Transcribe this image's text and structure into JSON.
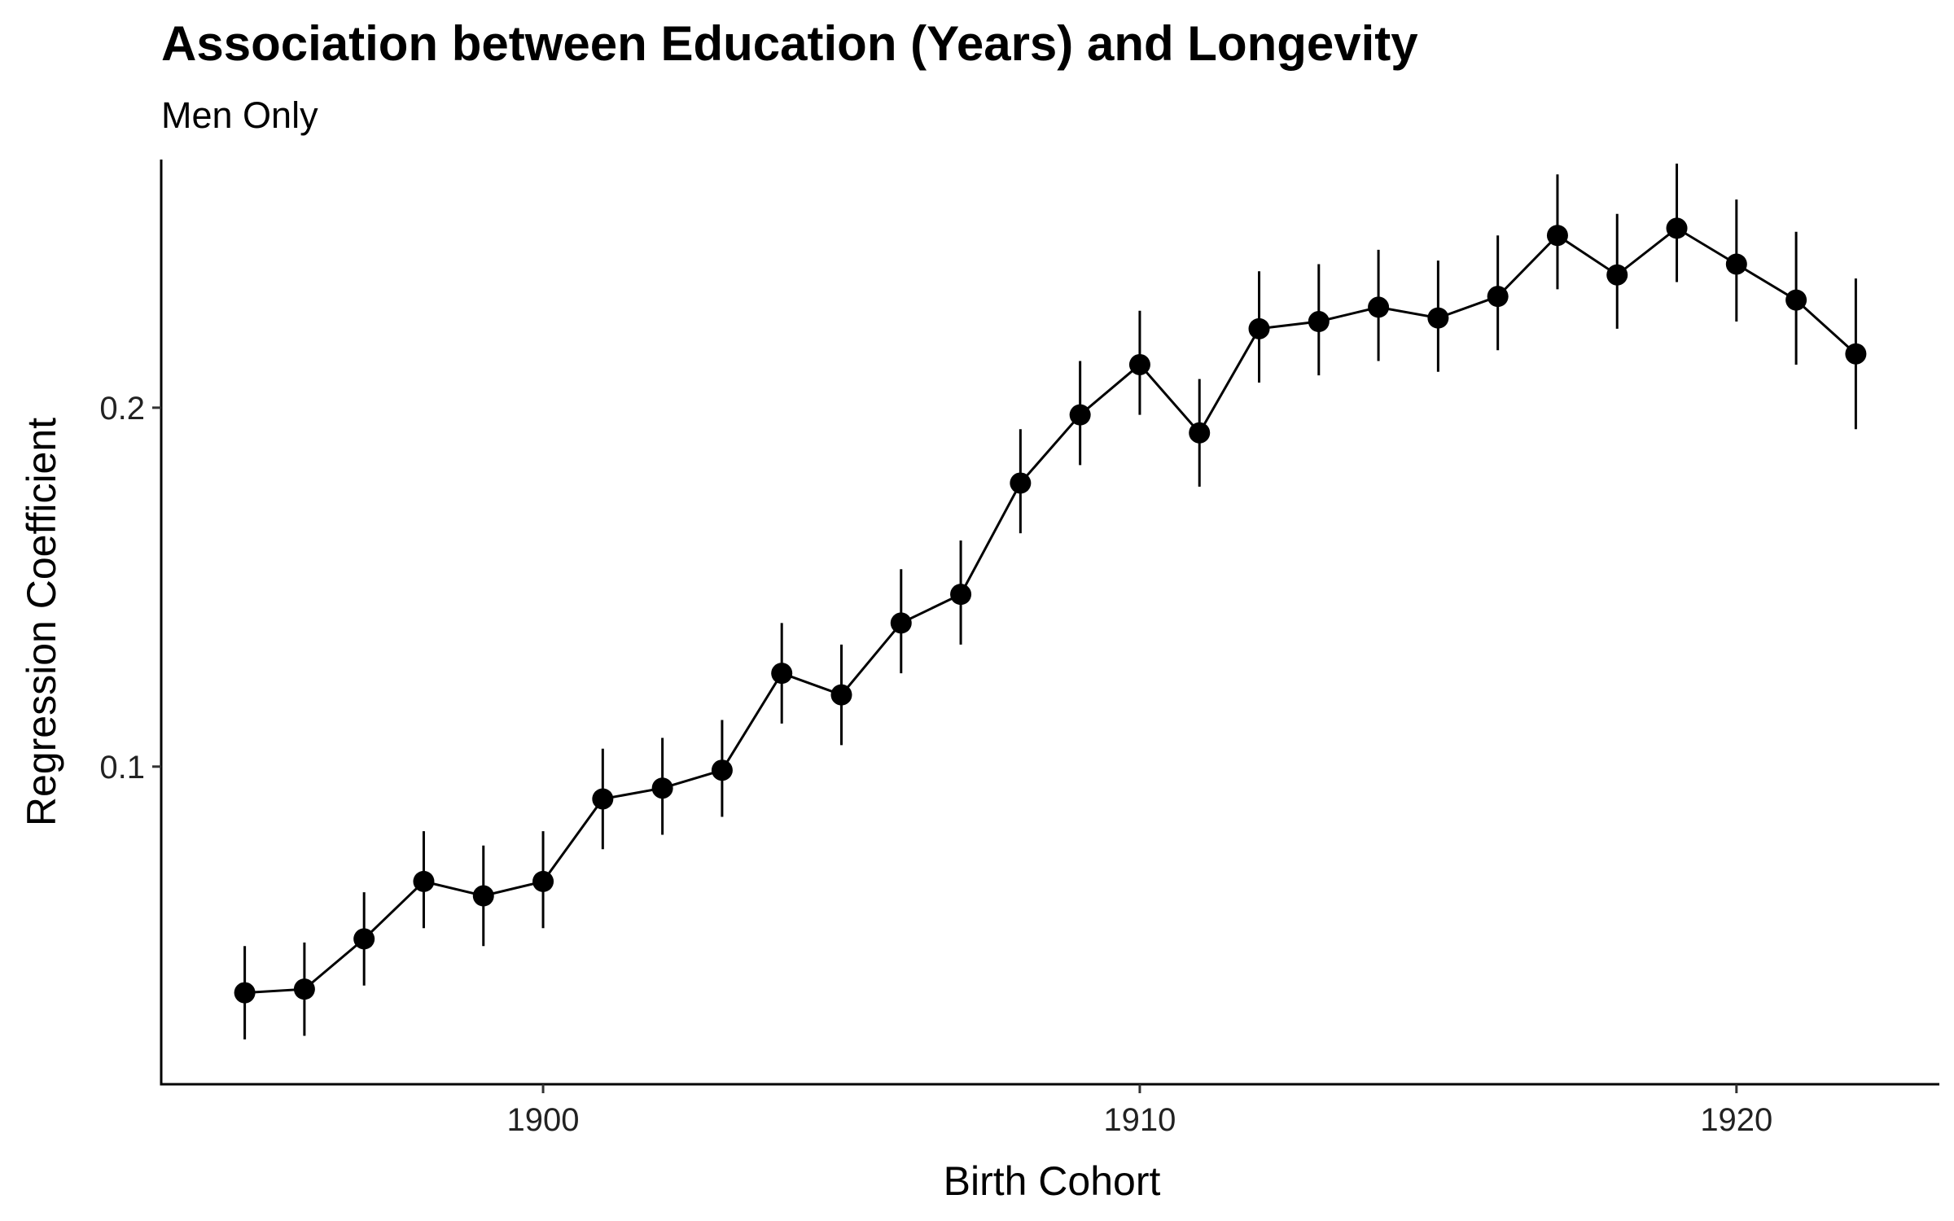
{
  "chart_data": {
    "type": "scatter",
    "title": "Association between Education (Years) and Longevity",
    "subtitle": "Men Only",
    "xlabel": "Birth Cohort",
    "ylabel": "Regression Coefficient",
    "xlim": [
      1893.6,
      1923.4
    ],
    "ylim": [
      0.0115,
      0.2705
    ],
    "x_ticks": [
      1900,
      1910,
      1920
    ],
    "y_ticks": [
      0.1,
      0.2
    ],
    "x_tick_labels": [
      "1900",
      "1910",
      "1920"
    ],
    "y_tick_labels": [
      "0.1",
      "0.2"
    ],
    "grid": false,
    "legend": "none",
    "marker_color": "#000000",
    "line_color": "#000000",
    "series": [
      {
        "x": [
          1895,
          1896,
          1897,
          1898,
          1899,
          1900,
          1901,
          1902,
          1903,
          1904,
          1905,
          1906,
          1907,
          1908,
          1909,
          1910,
          1911,
          1912,
          1913,
          1914,
          1915,
          1916,
          1917,
          1918,
          1919,
          1920,
          1921,
          1922
        ],
        "y": [
          0.037,
          0.038,
          0.052,
          0.068,
          0.064,
          0.068,
          0.091,
          0.094,
          0.099,
          0.126,
          0.12,
          0.14,
          0.148,
          0.179,
          0.198,
          0.212,
          0.193,
          0.222,
          0.224,
          0.228,
          0.225,
          0.231,
          0.248,
          0.237,
          0.25,
          0.24,
          0.23,
          0.215
        ],
        "lower": [
          0.024,
          0.025,
          0.039,
          0.055,
          0.05,
          0.055,
          0.077,
          0.081,
          0.086,
          0.112,
          0.106,
          0.126,
          0.134,
          0.165,
          0.184,
          0.198,
          0.178,
          0.207,
          0.209,
          0.213,
          0.21,
          0.216,
          0.233,
          0.222,
          0.235,
          0.224,
          0.212,
          0.194
        ],
        "upper": [
          0.05,
          0.051,
          0.065,
          0.082,
          0.078,
          0.082,
          0.105,
          0.108,
          0.113,
          0.14,
          0.134,
          0.155,
          0.163,
          0.194,
          0.213,
          0.227,
          0.208,
          0.238,
          0.24,
          0.244,
          0.241,
          0.248,
          0.265,
          0.254,
          0.268,
          0.258,
          0.249,
          0.236
        ]
      }
    ]
  }
}
